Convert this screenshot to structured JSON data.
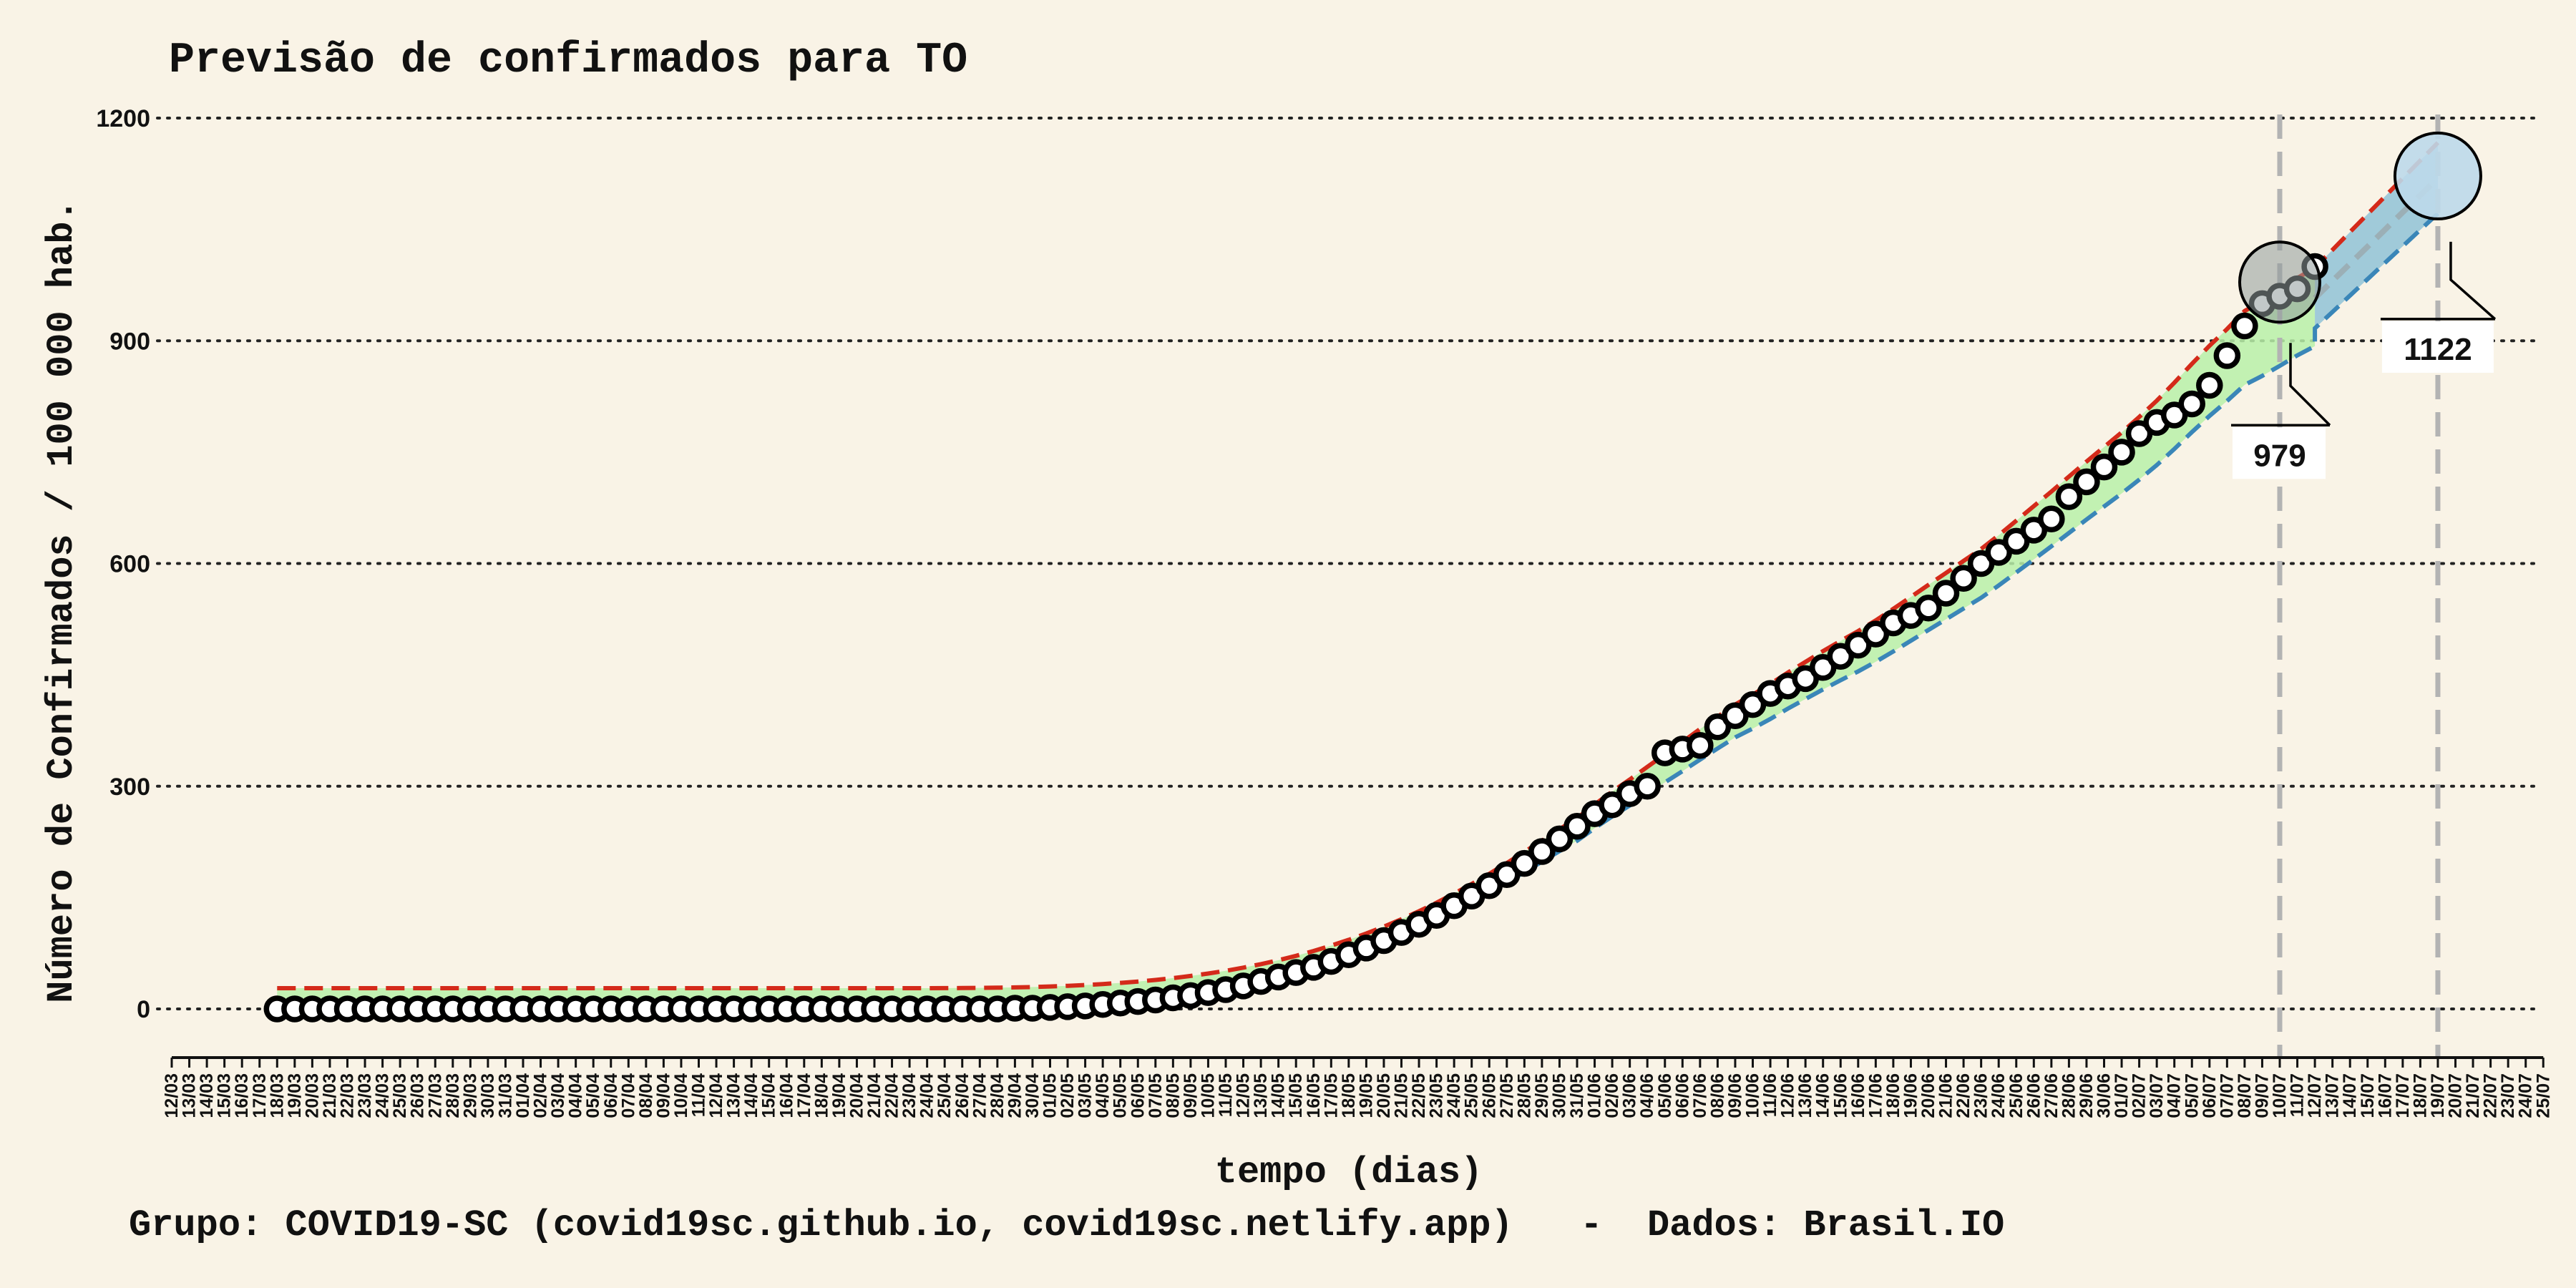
{
  "chart_data": {
    "type": "line",
    "title": "Previsão de confirmados para TO",
    "xlabel": "tempo (dias)",
    "ylabel": "Número de Confirmados / 100 000 hab.",
    "footer": "Grupo: COVID19-SC (covid19sc.github.io, covid19sc.netlify.app)   -  Dados: Brasil.IO",
    "ylim": [
      0,
      1200
    ],
    "yticks": [
      0,
      300,
      600,
      900,
      1200
    ],
    "grid": "horizontal dotted",
    "x_dates": [
      "12/03",
      "13/03",
      "14/03",
      "15/03",
      "16/03",
      "17/03",
      "18/03",
      "19/03",
      "20/03",
      "21/03",
      "22/03",
      "23/03",
      "24/03",
      "25/03",
      "26/03",
      "27/03",
      "28/03",
      "29/03",
      "30/03",
      "31/03",
      "01/04",
      "02/04",
      "03/04",
      "04/04",
      "05/04",
      "06/04",
      "07/04",
      "08/04",
      "09/04",
      "10/04",
      "11/04",
      "12/04",
      "13/04",
      "14/04",
      "15/04",
      "16/04",
      "17/04",
      "18/04",
      "19/04",
      "20/04",
      "21/04",
      "22/04",
      "23/04",
      "24/04",
      "25/04",
      "26/04",
      "27/04",
      "28/04",
      "29/04",
      "30/04",
      "01/05",
      "02/05",
      "03/05",
      "04/05",
      "05/05",
      "06/05",
      "07/05",
      "08/05",
      "09/05",
      "10/05",
      "11/05",
      "12/05",
      "13/05",
      "14/05",
      "15/05",
      "16/05",
      "17/05",
      "18/05",
      "19/05",
      "20/05",
      "21/05",
      "22/05",
      "23/05",
      "24/05",
      "25/05",
      "26/05",
      "27/05",
      "28/05",
      "29/05",
      "30/05",
      "31/05",
      "01/06",
      "02/06",
      "03/06",
      "04/06",
      "05/06",
      "06/06",
      "07/06",
      "08/06",
      "09/06",
      "10/06",
      "11/06",
      "12/06",
      "13/06",
      "14/06",
      "15/06",
      "16/06",
      "17/06",
      "18/06",
      "19/06",
      "20/06",
      "21/06",
      "22/06",
      "23/06",
      "24/06",
      "25/06",
      "26/06",
      "27/06",
      "28/06",
      "29/06",
      "30/06",
      "01/07",
      "02/07",
      "03/07",
      "04/07",
      "05/07",
      "06/07",
      "07/07",
      "08/07",
      "09/07",
      "10/07",
      "11/07",
      "12/07",
      "13/07",
      "14/07",
      "15/07",
      "16/07",
      "17/07",
      "18/07",
      "19/07",
      "20/07",
      "21/07",
      "22/07",
      "23/07",
      "24/07",
      "25/07"
    ],
    "observed": {
      "start_date": "18/03",
      "values": [
        0,
        0,
        0,
        0,
        0,
        0,
        0,
        0,
        0,
        0,
        0,
        0,
        0,
        0,
        0,
        0,
        0,
        0,
        0,
        0,
        0,
        0,
        0,
        0,
        0,
        0,
        0,
        0,
        0,
        0,
        0,
        0,
        0,
        0,
        0,
        0,
        0,
        0,
        0,
        0,
        0,
        0,
        1,
        1,
        2,
        3,
        4,
        6,
        8,
        10,
        12,
        15,
        18,
        22,
        26,
        31,
        37,
        43,
        49,
        56,
        64,
        73,
        82,
        92,
        103,
        114,
        126,
        139,
        152,
        166,
        181,
        196,
        212,
        229,
        246,
        263,
        275,
        290,
        300,
        345,
        350,
        355,
        380,
        395,
        410,
        425,
        435,
        445,
        460,
        475,
        490,
        505,
        520,
        530,
        540,
        560,
        580,
        600,
        615,
        630,
        645,
        660,
        690,
        710,
        730,
        750,
        775,
        790,
        800,
        815,
        840,
        880,
        920,
        950,
        960,
        970,
        1000
      ]
    },
    "forecast": {
      "median_end": 1122,
      "intermediate": 979,
      "intermediate_date": "10/07",
      "end_date": "19/07"
    },
    "colors": {
      "upper_bound": "#d42a1a",
      "lower_bound": "#3a86b8",
      "band": "#b9f0a8",
      "forecast_band": "#82bcd4",
      "marker_end": "#bcd9ea",
      "marker_mid": "#8f9a9a",
      "background": "#f9f3e6"
    }
  }
}
